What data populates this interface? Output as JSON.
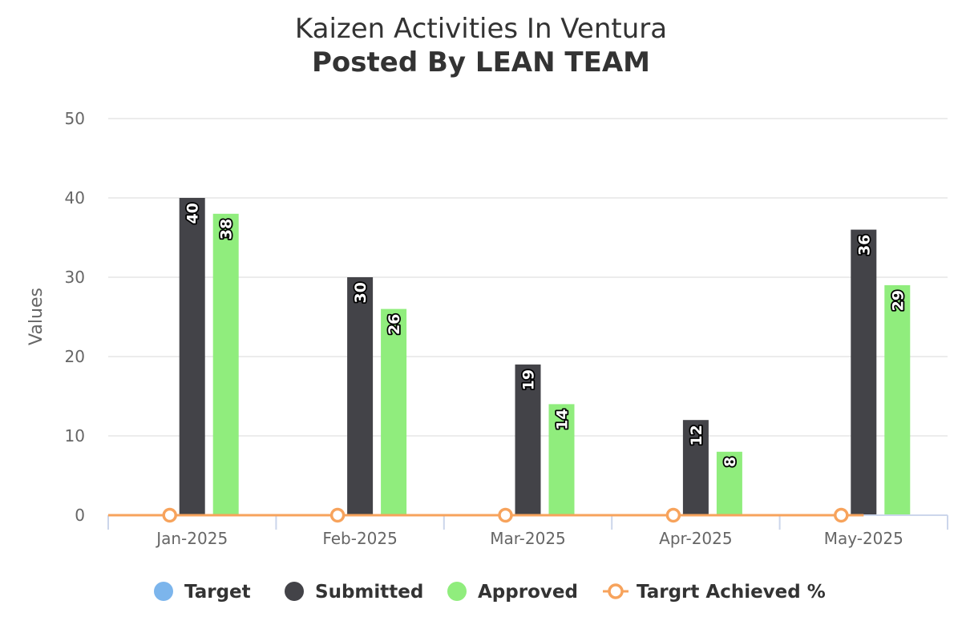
{
  "chart_data": {
    "type": "bar",
    "title": "Kaizen Activities In Ventura",
    "subtitle": "Posted By LEAN TEAM",
    "ylabel": "Values",
    "ylim": [
      0,
      50
    ],
    "yticks": [
      0,
      10,
      20,
      30,
      40,
      50
    ],
    "categories": [
      "Jan-2025",
      "Feb-2025",
      "Mar-2025",
      "Apr-2025",
      "May-2025"
    ],
    "series": [
      {
        "name": "Target",
        "type": "bar",
        "color": "#7cb5ec",
        "values": [
          0,
          0,
          0,
          0,
          0
        ]
      },
      {
        "name": "Submitted",
        "type": "bar",
        "color": "#434348",
        "values": [
          40,
          30,
          19,
          12,
          36
        ]
      },
      {
        "name": "Approved",
        "type": "bar",
        "color": "#90ed7d",
        "values": [
          38,
          26,
          14,
          8,
          29
        ]
      },
      {
        "name": "Targrt Achieved %",
        "type": "line",
        "color": "#f7a35c",
        "values": [
          0,
          0,
          0,
          0,
          0
        ]
      }
    ],
    "grid": true,
    "legend": "bottom-center"
  }
}
